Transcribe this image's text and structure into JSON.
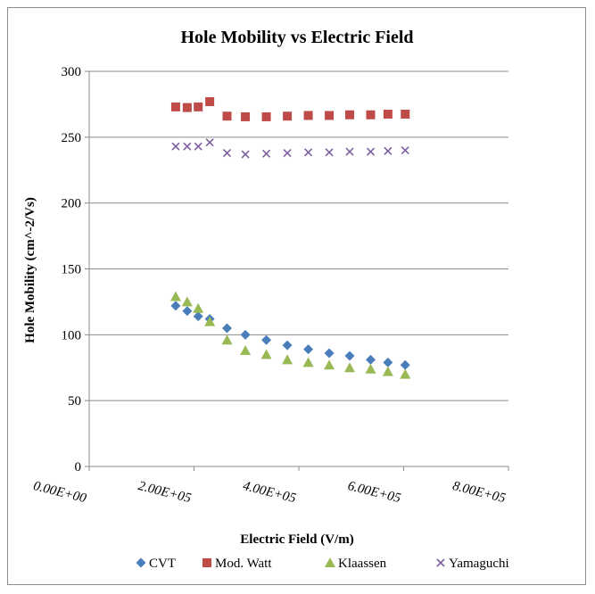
{
  "chart_data": {
    "type": "scatter",
    "title": "Hole Mobility vs Electric Field",
    "xlabel": "Electric Field (V/m)",
    "ylabel": "Hole Mobility (cm^-2/Vs)",
    "xlim": [
      0,
      800000
    ],
    "ylim": [
      0,
      300
    ],
    "x_ticks": [
      "0.00E+00",
      "2.00E+05",
      "4.00E+05",
      "6.00E+05",
      "8.00E+05"
    ],
    "x_tick_values": [
      0,
      200000,
      400000,
      600000,
      800000
    ],
    "y_ticks": [
      "0",
      "50",
      "100",
      "150",
      "200",
      "250",
      "300"
    ],
    "y_tick_values": [
      0,
      50,
      100,
      150,
      200,
      250,
      300
    ],
    "grid": "horizontal",
    "legend_position": "bottom",
    "series": [
      {
        "name": "CVT",
        "marker": "diamond",
        "color": "#4a7ebb",
        "x": [
          165000,
          187000,
          208000,
          230000,
          263000,
          298000,
          338000,
          378000,
          418000,
          458000,
          497000,
          537000,
          570000,
          603000
        ],
        "y": [
          122,
          118,
          114,
          112,
          105,
          100,
          96,
          92,
          89,
          86,
          84,
          81,
          79,
          77
        ]
      },
      {
        "name": "Mod. Watt",
        "marker": "square",
        "color": "#be4b48",
        "x": [
          165000,
          187000,
          208000,
          230000,
          263000,
          298000,
          338000,
          378000,
          418000,
          458000,
          497000,
          537000,
          570000,
          603000
        ],
        "y": [
          273,
          272.5,
          273,
          277,
          266,
          265.5,
          265.5,
          266,
          266.5,
          266.5,
          267,
          267,
          267.5,
          267.5
        ]
      },
      {
        "name": "Klaassen",
        "marker": "triangle",
        "color": "#98b954",
        "x": [
          165000,
          187000,
          208000,
          230000,
          263000,
          298000,
          338000,
          378000,
          418000,
          458000,
          497000,
          537000,
          570000,
          603000
        ],
        "y": [
          129,
          125,
          120,
          110,
          96,
          88,
          85,
          81,
          79,
          77,
          75,
          74,
          72,
          70
        ]
      },
      {
        "name": "Yamaguchi",
        "marker": "x",
        "color": "#7d60a0",
        "x": [
          165000,
          187000,
          208000,
          230000,
          263000,
          298000,
          338000,
          378000,
          418000,
          458000,
          497000,
          537000,
          570000,
          603000
        ],
        "y": [
          243,
          243,
          243,
          246,
          238,
          237,
          237.5,
          238,
          238.5,
          238.5,
          239,
          239,
          239.5,
          240
        ]
      }
    ]
  }
}
